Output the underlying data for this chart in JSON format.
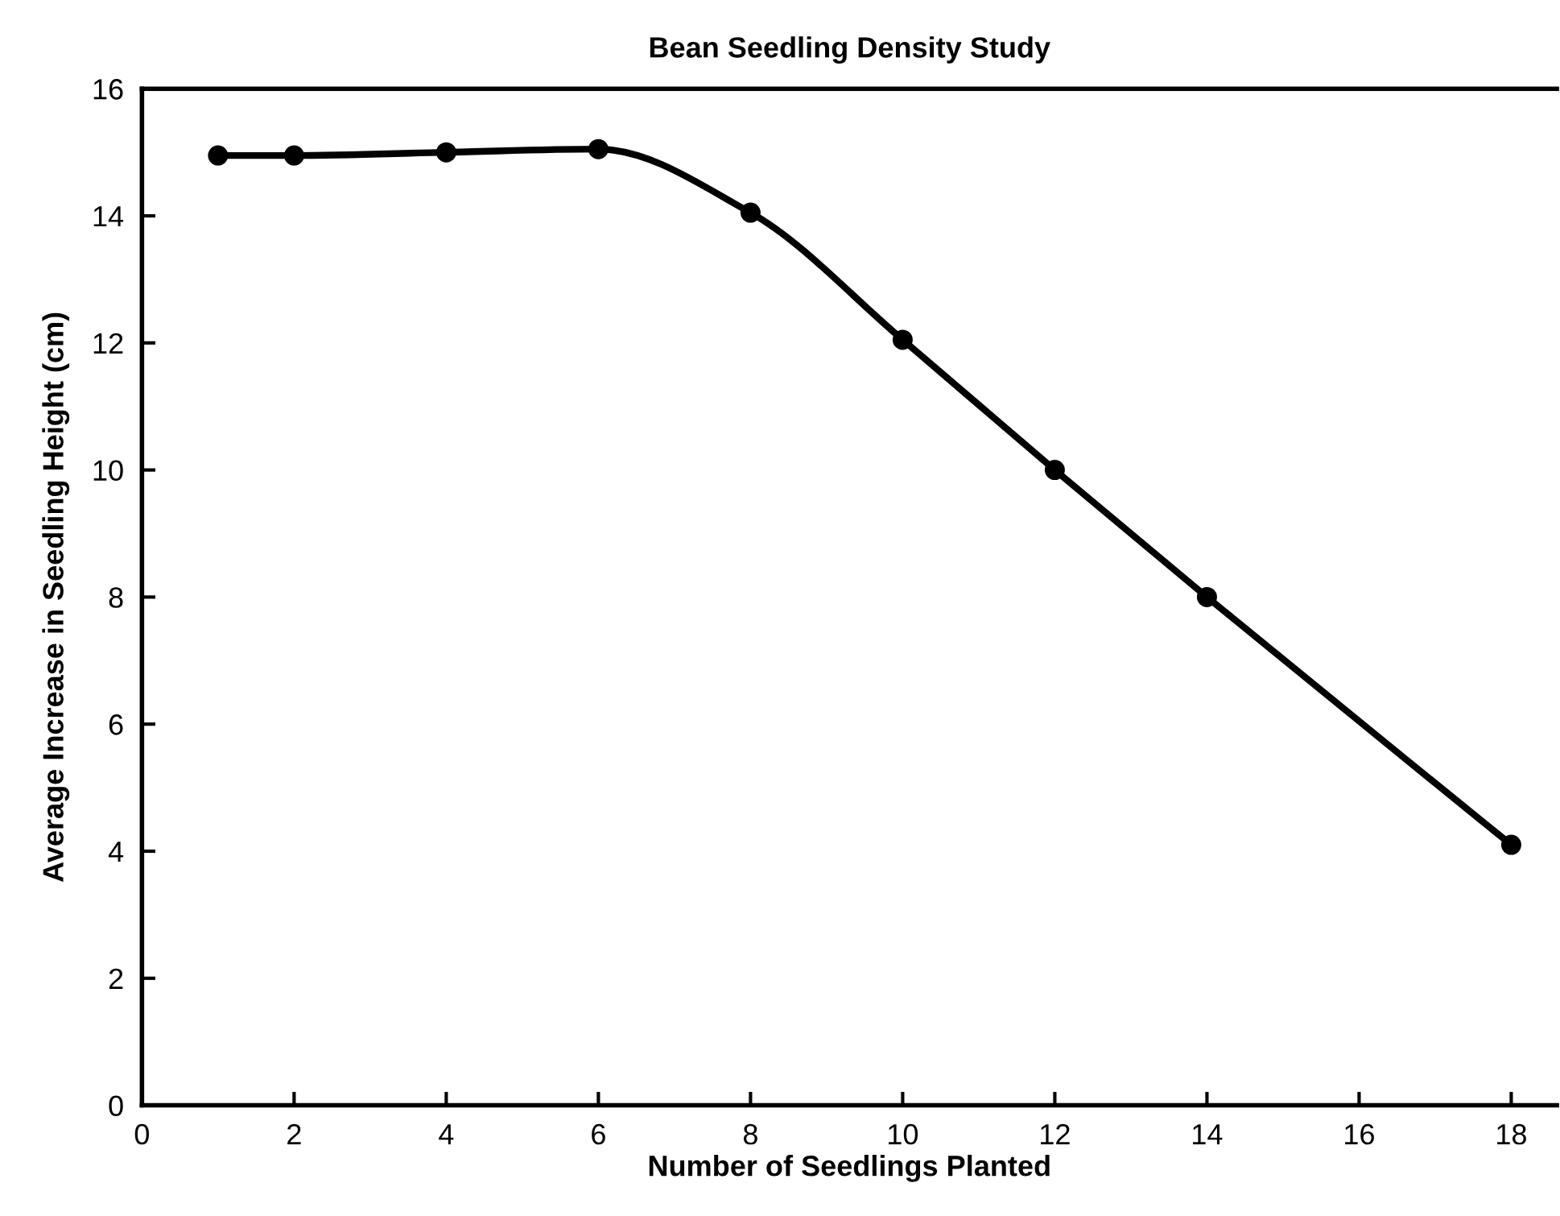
{
  "chart_data": {
    "type": "line",
    "title": "Bean Seedling Density Study",
    "xlabel": "Number of Seedlings Planted",
    "ylabel": "Average Increase in Seedling Height (cm)",
    "x": [
      1,
      2,
      4,
      6,
      8,
      10,
      12,
      14,
      18
    ],
    "series": [
      {
        "color": "#000000",
        "values": [
          14.95,
          14.95,
          15.0,
          15.05,
          14.05,
          12.05,
          10.0,
          8.0,
          4.1
        ]
      }
    ],
    "xlim": [
      0,
      18.6
    ],
    "ylim": [
      0,
      16
    ],
    "xticks": [
      0,
      2,
      4,
      6,
      8,
      10,
      12,
      14,
      16,
      18
    ],
    "yticks": [
      0,
      2,
      4,
      6,
      8,
      10,
      12,
      14,
      16
    ],
    "marker": "circle",
    "line_style": "solid",
    "grid": false,
    "legend": false
  }
}
